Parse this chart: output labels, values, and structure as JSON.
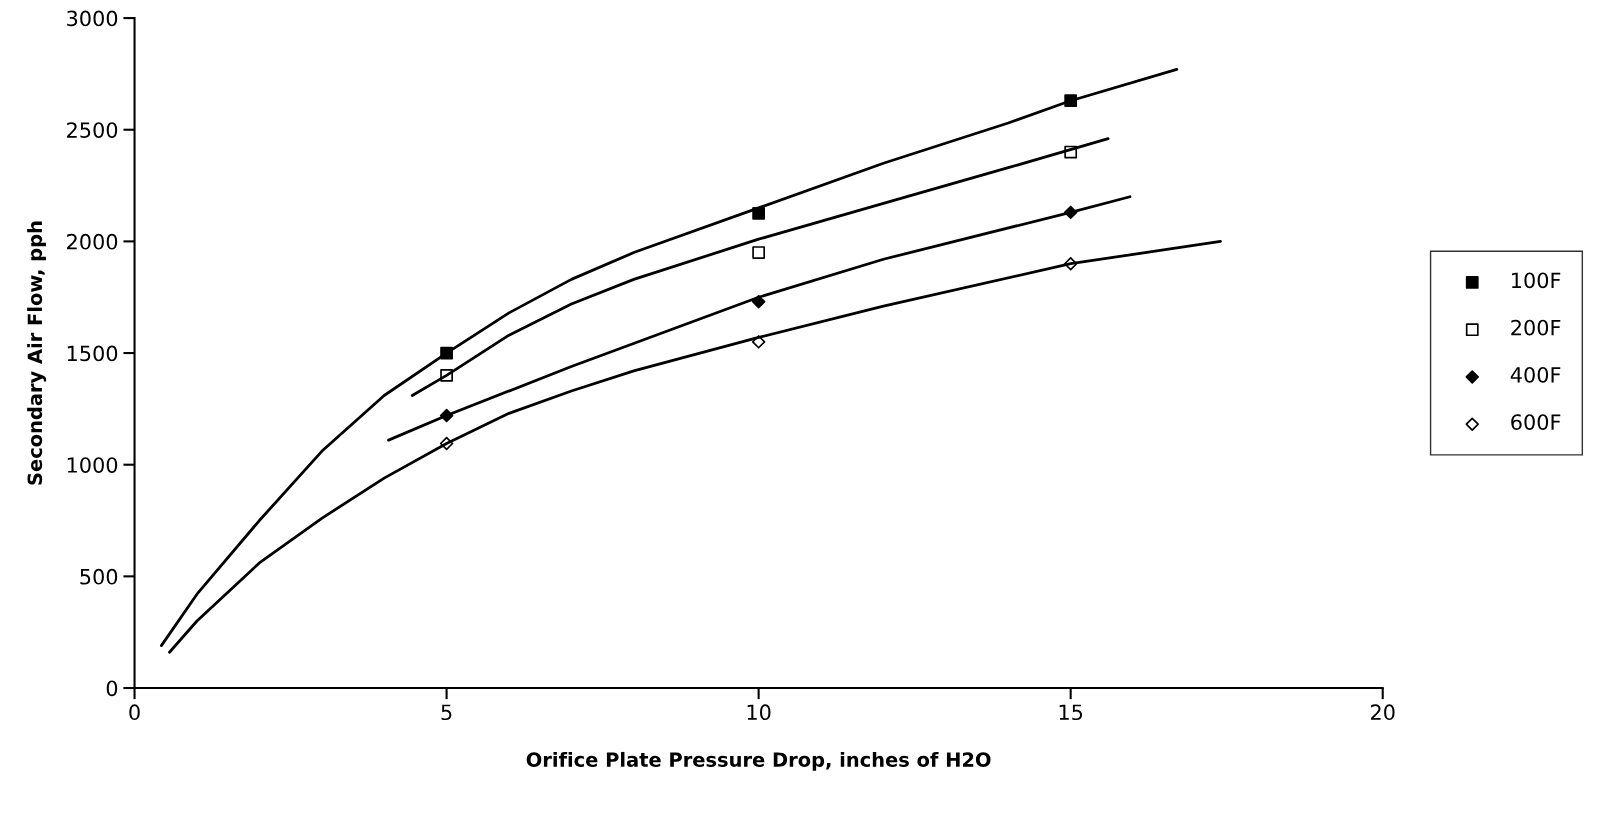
{
  "chart_data": {
    "type": "scatter",
    "xlabel": "Orifice Plate Pressure Drop, inches of H2O",
    "ylabel": "Secondary Air Flow, pph",
    "xlim": [
      0,
      20
    ],
    "xticks": [
      0,
      5,
      10,
      15,
      20
    ],
    "ylim": [
      0,
      3000
    ],
    "yticks": [
      0,
      500,
      1000,
      1500,
      2000,
      2500,
      3000
    ],
    "grid": false,
    "legend": "right",
    "series": [
      {
        "name": "100F",
        "color": "#000000",
        "marker": "square",
        "x": [
          5,
          10,
          15
        ],
        "values": [
          1500,
          2125,
          2630
        ]
      },
      {
        "name": "200F",
        "color": "#000000",
        "marker": "square-open",
        "x": [
          5,
          10,
          15
        ],
        "values": [
          1400,
          1950,
          2400
        ]
      },
      {
        "name": "400F",
        "color": "#000000",
        "marker": "diamond",
        "x": [
          5,
          10,
          15
        ],
        "values": [
          1220,
          1730,
          2130
        ]
      },
      {
        "name": "600F",
        "color": "#000000",
        "marker": "diamond-open",
        "x": [
          5,
          10,
          15
        ],
        "values": [
          1095,
          1550,
          1900
        ]
      },
      {
        "type": "line",
        "color": "#000000",
        "x": [
          0.43,
          1,
          2,
          3,
          4,
          5,
          6,
          7,
          8,
          10,
          12,
          14,
          15,
          16.7
        ],
        "values": [
          190,
          420,
          750,
          1060,
          1310,
          1500,
          1680,
          1830,
          1950,
          2150,
          2350,
          2530,
          2630,
          2770
        ]
      },
      {
        "type": "line",
        "color": "#000000",
        "x": [
          4.45,
          5,
          6,
          7,
          8,
          10,
          12,
          14,
          15.6
        ],
        "values": [
          1310,
          1400,
          1580,
          1720,
          1830,
          2010,
          2170,
          2330,
          2460
        ]
      },
      {
        "type": "line",
        "color": "#000000",
        "x": [
          4.07,
          5,
          7,
          10,
          12,
          15,
          15.95
        ],
        "values": [
          1110,
          1220,
          1440,
          1750,
          1920,
          2130,
          2200
        ]
      },
      {
        "type": "line",
        "color": "#000000",
        "x": [
          0.56,
          1,
          2,
          3,
          4,
          5,
          6,
          7,
          8,
          10,
          12,
          15,
          17.4
        ],
        "values": [
          160,
          300,
          560,
          760,
          940,
          1095,
          1230,
          1330,
          1420,
          1570,
          1710,
          1900,
          2000
        ]
      }
    ]
  }
}
